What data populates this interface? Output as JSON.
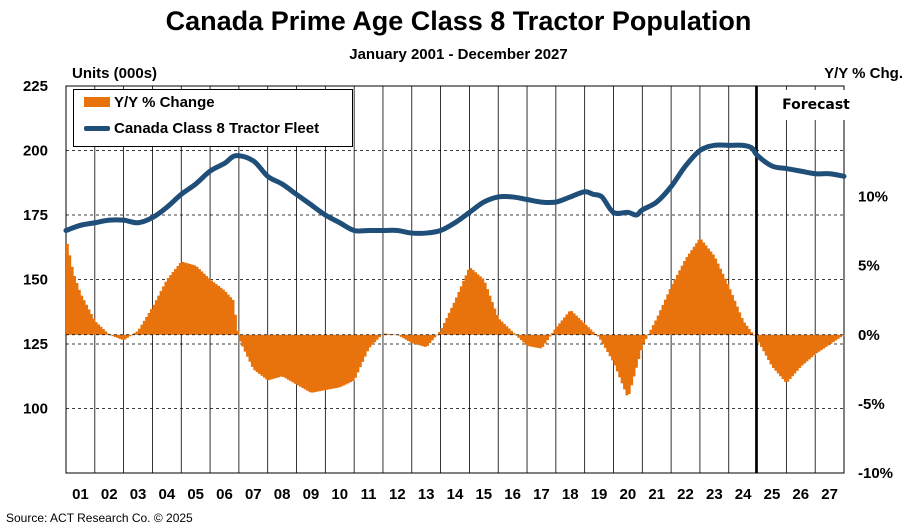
{
  "title": "Canada Prime Age Class 8 Tractor Population",
  "subtitle": "January 2001 - December 2027",
  "source": "Source:  ACT Research Co. © 2025",
  "forecast_label": "Forecast",
  "colors": {
    "bars": "#E8730C",
    "fleet": "#1F4E79"
  },
  "chart_data": {
    "type": "bar+line",
    "x_tick_labels": [
      "01",
      "02",
      "03",
      "04",
      "05",
      "06",
      "07",
      "08",
      "09",
      "10",
      "11",
      "12",
      "13",
      "14",
      "15",
      "16",
      "17",
      "18",
      "19",
      "20",
      "21",
      "22",
      "23",
      "24",
      "25",
      "26",
      "27"
    ],
    "left_axis": {
      "label": "Units (000s)",
      "ticks": [
        "225",
        "200",
        "175",
        "150",
        "125",
        "100"
      ],
      "ylim": [
        75,
        225
      ]
    },
    "right_axis": {
      "label": "Y/Y % Chg.",
      "ticks": [
        "10%",
        "5%",
        "0%",
        "-5%",
        "-10%"
      ],
      "ylim": [
        -10,
        18
      ]
    },
    "forecast_start": "2025-01",
    "grid": true,
    "legend": {
      "position": "top-left",
      "bar_label": "Y/Y % Change",
      "line_label": "Canada Class 8 Tractor Fleet"
    },
    "series": [
      {
        "name": "Canada Class 8 Tractor Fleet",
        "axis": "left",
        "kind": "line",
        "x": [
          2001.0,
          2001.5,
          2002.0,
          2002.5,
          2003.0,
          2003.5,
          2004.0,
          2004.5,
          2005.0,
          2005.5,
          2006.0,
          2006.5,
          2006.9,
          2007.5,
          2008.0,
          2008.5,
          2009.0,
          2009.5,
          2010.0,
          2010.5,
          2011.0,
          2011.5,
          2012.0,
          2012.5,
          2013.0,
          2013.5,
          2014.0,
          2014.5,
          2015.0,
          2015.5,
          2016.0,
          2016.5,
          2017.0,
          2017.5,
          2018.0,
          2018.5,
          2019.0,
          2019.3,
          2019.6,
          2020.0,
          2020.5,
          2020.8,
          2021.0,
          2021.5,
          2022.0,
          2022.5,
          2023.0,
          2023.5,
          2024.0,
          2024.5,
          2024.8,
          2025.0,
          2025.5,
          2026.0,
          2026.5,
          2027.0,
          2027.5,
          2028.0
        ],
        "y": [
          169,
          171,
          172,
          173,
          173,
          172,
          174,
          178,
          183,
          187,
          192,
          195,
          198,
          196,
          190,
          187,
          183,
          179,
          175,
          172,
          169,
          169,
          169,
          169,
          168,
          168,
          169,
          172,
          176,
          180,
          182,
          182,
          181,
          180,
          180,
          182,
          184,
          183,
          182,
          176,
          176,
          175,
          177,
          180,
          186,
          194,
          200,
          202,
          202,
          202,
          201,
          198,
          194,
          193,
          192,
          191,
          191,
          190
        ]
      },
      {
        "name": "Y/Y % Change",
        "axis": "right",
        "kind": "bar",
        "x": [
          2001.0,
          2001.25,
          2001.5,
          2001.75,
          2002.0,
          2002.5,
          2003.0,
          2003.5,
          2004.0,
          2004.5,
          2005.0,
          2005.5,
          2006.0,
          2006.5,
          2006.8,
          2007.0,
          2007.5,
          2008.0,
          2008.5,
          2009.0,
          2009.5,
          2010.0,
          2010.5,
          2011.0,
          2011.5,
          2012.0,
          2012.5,
          2013.0,
          2013.5,
          2014.0,
          2014.5,
          2015.0,
          2015.5,
          2016.0,
          2016.5,
          2017.0,
          2017.5,
          2018.0,
          2018.5,
          2019.0,
          2019.5,
          2020.0,
          2020.5,
          2021.0,
          2021.5,
          2022.0,
          2022.5,
          2023.0,
          2023.5,
          2024.0,
          2024.5,
          2025.0,
          2025.5,
          2026.0,
          2026.5,
          2027.0,
          2027.5,
          2028.0
        ],
        "y": [
          7.0,
          4.5,
          3.0,
          2.0,
          1.0,
          0.0,
          -0.4,
          0.3,
          2.0,
          4.0,
          5.3,
          5.0,
          4.0,
          3.2,
          2.5,
          -0.3,
          -2.5,
          -3.3,
          -3.0,
          -3.6,
          -4.2,
          -4.0,
          -3.8,
          -3.3,
          -1.0,
          0.1,
          0.0,
          -0.6,
          -0.9,
          0.3,
          2.5,
          4.9,
          4.0,
          1.2,
          0.2,
          -0.8,
          -1.0,
          0.5,
          1.8,
          0.8,
          -0.2,
          -2.0,
          -4.6,
          -0.8,
          1.2,
          3.5,
          5.5,
          7.0,
          5.7,
          3.5,
          1.0,
          -0.4,
          -2.3,
          -3.5,
          -2.3,
          -1.4,
          -0.7,
          0.0
        ]
      }
    ]
  }
}
